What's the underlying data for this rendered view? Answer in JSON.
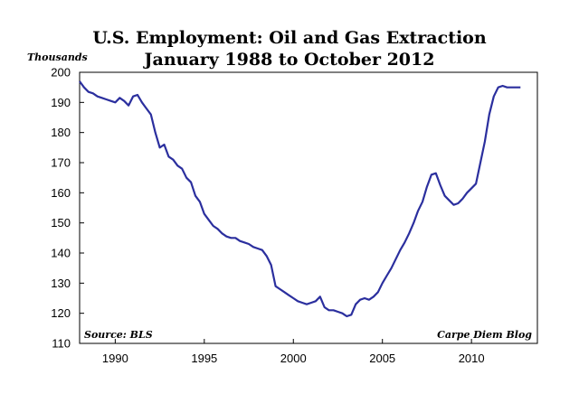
{
  "chart_data": {
    "type": "line",
    "title": "U.S. Employment: Oil and Gas Extraction",
    "subtitle": "January 1988 to October 2012",
    "ylabel": "Thousands",
    "xlabel": "",
    "source_note": "Source: BLS",
    "credit_note": "Carpe Diem Blog",
    "xlim": [
      1988,
      2013.7
    ],
    "ylim": [
      110,
      200
    ],
    "x_ticks": [
      1990,
      1995,
      2000,
      2005,
      2010
    ],
    "y_ticks": [
      110,
      120,
      130,
      140,
      150,
      160,
      170,
      180,
      190,
      200
    ],
    "grid": false,
    "line_color": "#2b2f9e",
    "series": [
      {
        "name": "Oil and Gas Extraction Employment",
        "x": [
          1988.0,
          1988.25,
          1988.5,
          1988.75,
          1989.0,
          1989.25,
          1989.5,
          1989.75,
          1990.0,
          1990.25,
          1990.5,
          1990.75,
          1991.0,
          1991.25,
          1991.5,
          1991.75,
          1992.0,
          1992.25,
          1992.5,
          1992.75,
          1993.0,
          1993.25,
          1993.5,
          1993.75,
          1994.0,
          1994.25,
          1994.5,
          1994.75,
          1995.0,
          1995.25,
          1995.5,
          1995.75,
          1996.0,
          1996.25,
          1996.5,
          1996.75,
          1997.0,
          1997.25,
          1997.5,
          1997.75,
          1998.0,
          1998.25,
          1998.5,
          1998.75,
          1999.0,
          1999.25,
          1999.5,
          1999.75,
          2000.0,
          2000.25,
          2000.5,
          2000.75,
          2001.0,
          2001.25,
          2001.5,
          2001.75,
          2002.0,
          2002.25,
          2002.5,
          2002.75,
          2003.0,
          2003.25,
          2003.5,
          2003.75,
          2004.0,
          2004.25,
          2004.5,
          2004.75,
          2005.0,
          2005.25,
          2005.5,
          2005.75,
          2006.0,
          2006.25,
          2006.5,
          2006.75,
          2007.0,
          2007.25,
          2007.5,
          2007.75,
          2008.0,
          2008.25,
          2008.5,
          2008.75,
          2009.0,
          2009.25,
          2009.5,
          2009.75,
          2010.0,
          2010.25,
          2010.5,
          2010.75,
          2011.0,
          2011.25,
          2011.5,
          2011.75,
          2012.0,
          2012.25,
          2012.5,
          2012.75
        ],
        "values": [
          197,
          195,
          193.5,
          193,
          192,
          191.5,
          191,
          190.5,
          190,
          191.5,
          190.5,
          189,
          192,
          192.5,
          190,
          188,
          186,
          180,
          175,
          176,
          172,
          171,
          169,
          168,
          165,
          163.5,
          159,
          157,
          153,
          151,
          149,
          148,
          146.5,
          145.5,
          145,
          145,
          144,
          143.5,
          143,
          142,
          141.5,
          141,
          139,
          136,
          129,
          128,
          127,
          126,
          125,
          124,
          123.5,
          123,
          123.5,
          124,
          125.5,
          122,
          121,
          121,
          120.5,
          120,
          119,
          119.5,
          123,
          124.5,
          125,
          124.5,
          125.5,
          127,
          130,
          132.5,
          135,
          138,
          141,
          143.5,
          146.5,
          150,
          154,
          157,
          162,
          166,
          166.5,
          162.5,
          159,
          157.5,
          156,
          156.5,
          158,
          160,
          161.5,
          163,
          170,
          177,
          186,
          192,
          195,
          195.5,
          195,
          195,
          195,
          195
        ]
      }
    ]
  }
}
